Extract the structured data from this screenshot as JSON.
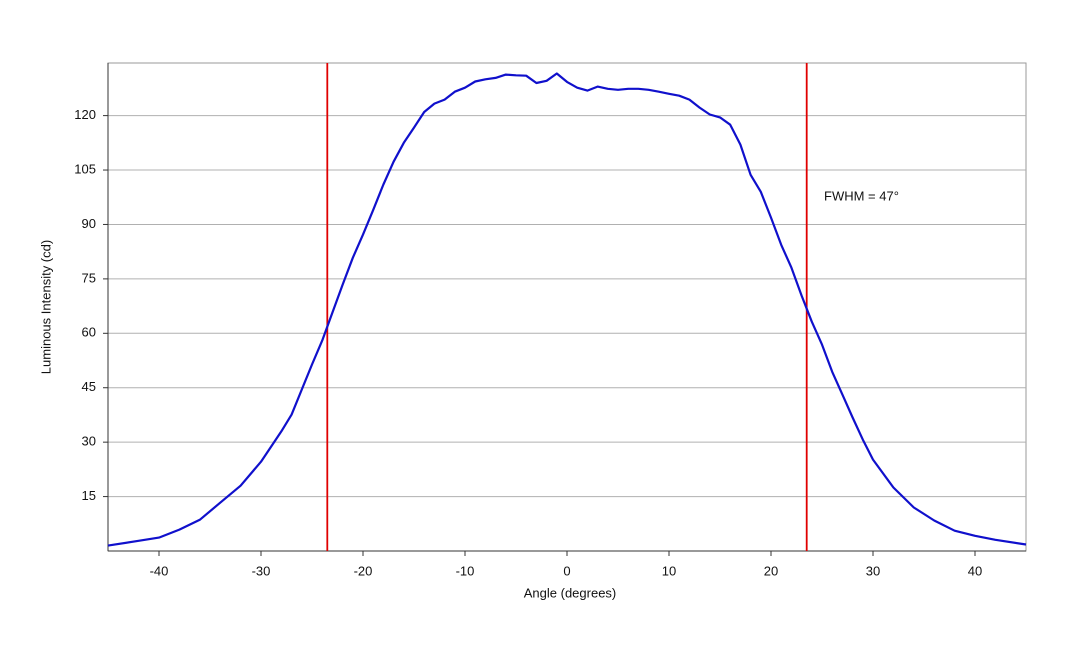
{
  "chart_data": {
    "type": "line",
    "x_label": "Angle (degrees)",
    "y_label": "Luminous Intensity (cd)",
    "annotation": "FWHM = 47°",
    "x": [
      -45,
      -42,
      -40,
      -38,
      -36,
      -34,
      -32,
      -30,
      -28,
      -27,
      -26,
      -25,
      -24,
      -23,
      -22,
      -21,
      -20,
      -19,
      -18,
      -17,
      -16,
      -15,
      -14,
      -13,
      -12,
      -11,
      -10,
      -9,
      -8,
      -7,
      -6,
      -5,
      -4,
      -3,
      -2,
      -1,
      0,
      1,
      2,
      3,
      4,
      5,
      6,
      7,
      8,
      9,
      10,
      11,
      12,
      13,
      14,
      15,
      16,
      17,
      18,
      19,
      20,
      21,
      22,
      23,
      24,
      25,
      26,
      27,
      28,
      29,
      30,
      32,
      34,
      36,
      38,
      40,
      42,
      45
    ],
    "series": [
      {
        "name": "Luminous Intensity",
        "color": "#1010cc",
        "values": [
          1.5,
          2.8,
          3.7,
          5.9,
          8.6,
          13.3,
          18,
          24.6,
          33,
          37.6,
          44.5,
          51.4,
          58,
          65.7,
          73.4,
          80.8,
          87.2,
          94,
          101,
          107.3,
          112.5,
          116.7,
          121,
          123.3,
          124.4,
          126.6,
          127.7,
          129.4,
          130,
          130.4,
          131.3,
          131.1,
          131,
          129,
          129.6,
          131.6,
          129.3,
          127.7,
          126.9,
          128,
          127.4,
          127.1,
          127.4,
          127.4,
          127.1,
          126.6,
          126,
          125.5,
          124.4,
          122.2,
          120.3,
          119.5,
          117.5,
          112,
          103.7,
          99,
          91.9,
          84.4,
          78.1,
          70.4,
          63.2,
          56.9,
          49.4,
          43.1,
          36.8,
          30.7,
          25.2,
          17.5,
          12,
          8.4,
          5.6,
          4.2,
          3.1,
          1.8
        ]
      }
    ],
    "vlines": [
      -23.5,
      23.5
    ],
    "vline_color": "#e00000",
    "xlim": [
      -45,
      45
    ],
    "ylim": [
      0,
      134.5
    ],
    "xticks": [
      -40,
      -30,
      -20,
      -10,
      0,
      10,
      20,
      30,
      40
    ],
    "yticks": [
      15,
      30,
      45,
      60,
      75,
      90,
      105,
      120
    ],
    "grid": true
  }
}
